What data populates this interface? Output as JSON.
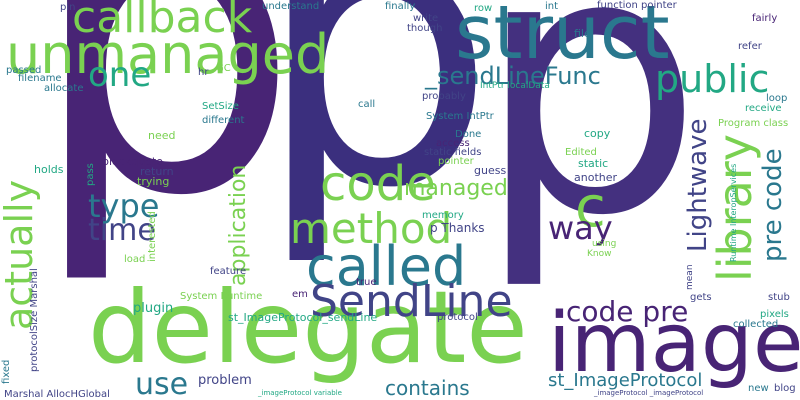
{
  "palette": {
    "dark": "#482475",
    "indigo": "#414487",
    "blue": "#355f8d",
    "teal": "#2a788e",
    "green": "#22a884",
    "lime": "#7ad151"
  },
  "words": [
    {
      "text": "p",
      "color": "#482475",
      "weight": 1.0
    },
    {
      "text": "p",
      "color": "#3b2f7e",
      "weight": 1.0
    },
    {
      "text": "p",
      "color": "#44307f",
      "weight": 0.95
    },
    {
      "text": "delegate",
      "color": "#7ad151",
      "weight": 0.7
    },
    {
      "text": "image",
      "color": "#482475",
      "weight": 0.65
    },
    {
      "text": "struct",
      "color": "#2a788e",
      "weight": 0.6
    },
    {
      "text": "unmanaged",
      "color": "#7ad151",
      "weight": 0.5
    },
    {
      "text": "callback",
      "color": "#7ad151",
      "weight": 0.45
    },
    {
      "text": "called",
      "color": "#2a788e",
      "weight": 0.45
    },
    {
      "text": "SendLine",
      "color": "#414487",
      "weight": 0.4
    },
    {
      "text": "method",
      "color": "#7ad151",
      "weight": 0.4
    },
    {
      "text": "code",
      "color": "#7ad151",
      "weight": 0.4
    },
    {
      "text": "library",
      "color": "#7ad151",
      "weight": 0.4
    },
    {
      "text": "c",
      "color": "#7ad151",
      "weight": 0.4
    },
    {
      "text": "public",
      "color": "#22a884",
      "weight": 0.35
    },
    {
      "text": "one",
      "color": "#22a884",
      "weight": 0.35
    },
    {
      "text": "actually",
      "color": "#7ad151",
      "weight": 0.35
    },
    {
      "text": "type",
      "color": "#2a788e",
      "weight": 0.3
    },
    {
      "text": "time",
      "color": "#414487",
      "weight": 0.3
    },
    {
      "text": "way",
      "color": "#482475",
      "weight": 0.3
    },
    {
      "text": "use",
      "color": "#2a788e",
      "weight": 0.3
    },
    {
      "text": "code pre",
      "color": "#482475",
      "weight": 0.3
    },
    {
      "text": "pre code",
      "color": "#2a788e",
      "weight": 0.3
    },
    {
      "text": "Lightwave",
      "color": "#414487",
      "weight": 0.3
    },
    {
      "text": "application",
      "color": "#7ad151",
      "weight": 0.25
    },
    {
      "text": "managed",
      "color": "#7ad151",
      "weight": 0.25
    },
    {
      "text": "_sendLineFunc",
      "color": "#2a788e",
      "weight": 0.25
    },
    {
      "text": "contains",
      "color": "#2a788e",
      "weight": 0.22
    },
    {
      "text": "st_ImageProtocol",
      "color": "#2a788e",
      "weight": 0.22
    },
    {
      "text": "st_ImageProtocol_sendLine",
      "color": "#22a884",
      "weight": 0.15
    },
    {
      "text": "problem",
      "color": "#414487",
      "weight": 0.15
    },
    {
      "text": "plugin",
      "color": "#22a884",
      "weight": 0.15
    },
    {
      "text": "blockquote",
      "color": "#482475",
      "weight": 0.12
    },
    {
      "text": "return",
      "color": "#414487",
      "weight": 0.12
    },
    {
      "text": "trying",
      "color": "#7ad151",
      "weight": 0.12
    },
    {
      "text": "different",
      "color": "#2a788e",
      "weight": 0.12
    },
    {
      "text": "need",
      "color": "#7ad151",
      "weight": 0.12
    },
    {
      "text": "holds",
      "color": "#22a884",
      "weight": 0.12
    },
    {
      "text": "feature",
      "color": "#414487",
      "weight": 0.12
    },
    {
      "text": "memory",
      "color": "#22a884",
      "weight": 0.12
    },
    {
      "text": "p Thanks",
      "color": "#414487",
      "weight": 0.12
    },
    {
      "text": "copy",
      "color": "#22a884",
      "weight": 0.12
    },
    {
      "text": "Done",
      "color": "#2a788e",
      "weight": 0.12
    },
    {
      "text": "Edited",
      "color": "#7ad151",
      "weight": 0.12
    },
    {
      "text": "static",
      "color": "#22a884",
      "weight": 0.12
    },
    {
      "text": "another",
      "color": "#414487",
      "weight": 0.12
    },
    {
      "text": "guess",
      "color": "#414487",
      "weight": 0.12
    },
    {
      "text": "access",
      "color": "#482475",
      "weight": 0.1
    },
    {
      "text": "static fields",
      "color": "#414487",
      "weight": 0.1
    },
    {
      "text": "pointer",
      "color": "#7ad151",
      "weight": 0.1
    },
    {
      "text": "Program class",
      "color": "#7ad151",
      "weight": 0.1
    },
    {
      "text": "receive",
      "color": "#22a884",
      "weight": 0.1
    },
    {
      "text": "loop",
      "color": "#2a788e",
      "weight": 0.1
    },
    {
      "text": "refer",
      "color": "#414487",
      "weight": 0.1
    },
    {
      "text": "fairly",
      "color": "#482475",
      "weight": 0.1
    },
    {
      "text": "file",
      "color": "#2a788e",
      "weight": 0.1
    },
    {
      "text": "function pointer",
      "color": "#414487",
      "weight": 0.1
    },
    {
      "text": "row",
      "color": "#22a884",
      "weight": 0.1
    },
    {
      "text": "int",
      "color": "#2a788e",
      "weight": 0.1
    },
    {
      "text": "finally",
      "color": "#2a788e",
      "weight": 0.1
    },
    {
      "text": "write",
      "color": "#414487",
      "weight": 0.1
    },
    {
      "text": "though",
      "color": "#414487",
      "weight": 0.1
    },
    {
      "text": "understand",
      "color": "#2a788e",
      "weight": 0.1
    },
    {
      "text": "pin",
      "color": "#414487",
      "weight": 0.1
    },
    {
      "text": "passed",
      "color": "#2a788e",
      "weight": 0.1
    },
    {
      "text": "filename",
      "color": "#2a788e",
      "weight": 0.1
    },
    {
      "text": "allocate",
      "color": "#2a788e",
      "weight": 0.1
    },
    {
      "text": "hr",
      "color": "#414487",
      "weight": 0.1
    },
    {
      "text": "GC",
      "color": "#7ad151",
      "weight": 0.1
    },
    {
      "text": "SetSize",
      "color": "#22a884",
      "weight": 0.1
    },
    {
      "text": "call",
      "color": "#2a788e",
      "weight": 0.1
    },
    {
      "text": "probably",
      "color": "#414487",
      "weight": 0.1
    },
    {
      "text": "IntPtr localData",
      "color": "#22a884",
      "weight": 0.1
    },
    {
      "text": "System IntPtr",
      "color": "#2a788e",
      "weight": 0.1
    },
    {
      "text": "System Runtime",
      "color": "#7ad151",
      "weight": 0.1
    },
    {
      "text": "protocol",
      "color": "#414487",
      "weight": 0.1
    },
    {
      "text": "true",
      "color": "#482475",
      "weight": 0.1
    },
    {
      "text": "em",
      "color": "#482475",
      "weight": 0.1
    },
    {
      "text": "gets",
      "color": "#414487",
      "weight": 0.1
    },
    {
      "text": "stub",
      "color": "#414487",
      "weight": 0.1
    },
    {
      "text": "pixels",
      "color": "#22a884",
      "weight": 0.1
    },
    {
      "text": "collected",
      "color": "#2a788e",
      "weight": 0.1
    },
    {
      "text": "new",
      "color": "#2a788e",
      "weight": 0.1
    },
    {
      "text": "blog",
      "color": "#414487",
      "weight": 0.1
    },
    {
      "text": "load",
      "color": "#7ad151",
      "weight": 0.1
    },
    {
      "text": "Know",
      "color": "#7ad151",
      "weight": 0.08
    },
    {
      "text": "using",
      "color": "#7ad151",
      "weight": 0.08
    },
    {
      "text": "mean",
      "color": "#414487",
      "weight": 0.08
    },
    {
      "text": "Marshal AllocHGlobal",
      "color": "#414487",
      "weight": 0.1
    },
    {
      "text": "protocolSize Marshal",
      "color": "#414487",
      "weight": 0.1
    },
    {
      "text": "fixed",
      "color": "#2a788e",
      "weight": 0.1
    },
    {
      "text": "pass",
      "color": "#22a884",
      "weight": 0.1
    },
    {
      "text": "interested",
      "color": "#7ad151",
      "weight": 0.1
    },
    {
      "text": "Runtime InteropServices",
      "color": "#22a884",
      "weight": 0.08
    },
    {
      "text": "_imageProtocol variable",
      "color": "#22a884",
      "weight": 0.05
    },
    {
      "text": "_imageProtocol _imageProtocol",
      "color": "#414487",
      "weight": 0.05
    }
  ]
}
